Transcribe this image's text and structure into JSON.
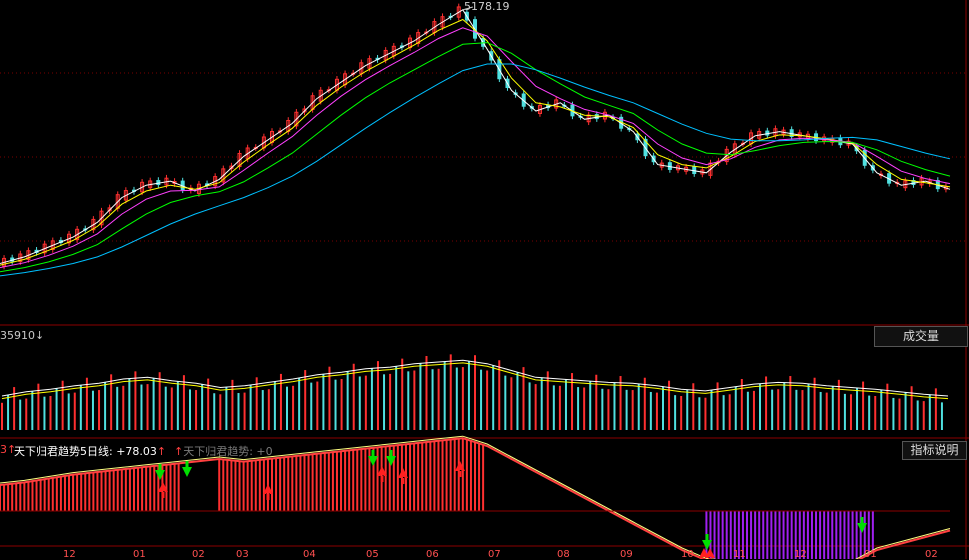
{
  "chart_data": [
    {
      "type": "line",
      "panel": "price",
      "title": "",
      "annotations": [
        {
          "label": "5178.19"
        }
      ],
      "series": [
        {
          "name": "",
          "color": "#ffffff",
          "values": [
            2100,
            2180,
            2300,
            2420,
            2600,
            2900,
            3050,
            3100,
            2980,
            3120,
            3400,
            3600,
            3800,
            4100,
            4300,
            4500,
            4650,
            4800,
            5000,
            5178,
            4700,
            4200,
            3950,
            4050,
            3850,
            3900,
            3700,
            3300,
            3250,
            3200,
            3450,
            3650,
            3700,
            3650,
            3600,
            3550,
            3200,
            3050,
            3100,
            3000
          ]
        },
        {
          "name": "",
          "color": "#ffff00",
          "values": [
            2080,
            2150,
            2260,
            2380,
            2550,
            2820,
            2980,
            3050,
            3000,
            3080,
            3330,
            3540,
            3740,
            4020,
            4240,
            4430,
            4590,
            4750,
            4930,
            5060,
            4800,
            4350,
            4050,
            4000,
            3900,
            3880,
            3750,
            3420,
            3300,
            3260,
            3400,
            3580,
            3660,
            3650,
            3610,
            3560,
            3300,
            3120,
            3080,
            3030
          ]
        },
        {
          "name": "",
          "color": "#ff40ff",
          "values": [
            2050,
            2110,
            2200,
            2310,
            2460,
            2700,
            2880,
            2980,
            2990,
            3030,
            3230,
            3440,
            3640,
            3900,
            4130,
            4330,
            4500,
            4660,
            4830,
            4960,
            4860,
            4550,
            4250,
            4100,
            3970,
            3900,
            3800,
            3550,
            3380,
            3300,
            3370,
            3510,
            3600,
            3620,
            3600,
            3570,
            3400,
            3220,
            3130,
            3070
          ]
        },
        {
          "name": "",
          "color": "#00ff00",
          "values": [
            2000,
            2050,
            2120,
            2210,
            2330,
            2520,
            2700,
            2840,
            2920,
            2970,
            3090,
            3260,
            3440,
            3670,
            3900,
            4110,
            4290,
            4450,
            4610,
            4760,
            4780,
            4650,
            4450,
            4280,
            4120,
            4020,
            3920,
            3720,
            3550,
            3440,
            3420,
            3470,
            3530,
            3570,
            3580,
            3570,
            3480,
            3340,
            3240,
            3160
          ]
        },
        {
          "name": "",
          "color": "#00c0ff",
          "values": [
            1950,
            1990,
            2040,
            2100,
            2180,
            2300,
            2440,
            2580,
            2700,
            2800,
            2900,
            3020,
            3160,
            3340,
            3540,
            3740,
            3930,
            4110,
            4280,
            4440,
            4520,
            4520,
            4450,
            4350,
            4240,
            4140,
            4050,
            3920,
            3790,
            3680,
            3610,
            3590,
            3590,
            3600,
            3620,
            3630,
            3600,
            3520,
            3440,
            3370
          ]
        }
      ]
    },
    {
      "type": "bar",
      "panel": "volume",
      "title": "",
      "label": "35910↓",
      "button": "成交量",
      "values": [
        40,
        45,
        48,
        52,
        55,
        60,
        62,
        58,
        55,
        50,
        52,
        56,
        60,
        65,
        68,
        72,
        74,
        78,
        80,
        82,
        78,
        70,
        62,
        60,
        58,
        56,
        55,
        52,
        48,
        46,
        50,
        54,
        56,
        55,
        52,
        50,
        48,
        45,
        42,
        40
      ]
    },
    {
      "type": "bar",
      "panel": "indicator",
      "title": "",
      "left_marker": "3↑",
      "legend": [
        {
          "label": "天下归君趋势5日线: +78.03",
          "arrow": "↑"
        },
        {
          "label": "天下归君趋势: +0",
          "arrow": "↑"
        }
      ],
      "button": "指标说明",
      "values": [
        20,
        22,
        25,
        28,
        30,
        32,
        34,
        36,
        38,
        40,
        38,
        40,
        42,
        44,
        46,
        48,
        50,
        52,
        54,
        56,
        50,
        40,
        30,
        20,
        10,
        0,
        -10,
        -20,
        -30,
        -38,
        -40,
        -40,
        -40,
        -40,
        -40,
        -40,
        -30,
        -25,
        -20,
        -15
      ]
    }
  ],
  "months": [
    "12",
    "01",
    "02",
    "03",
    "04",
    "05",
    "06",
    "07",
    "08",
    "09",
    "10",
    "11",
    "12",
    "01",
    "02"
  ],
  "colors": {
    "up": "#ff3030",
    "down": "#50e0e0",
    "purple": "#a020f0",
    "green_arrow": "#00e000",
    "red_arrow": "#ff2020",
    "grid": "#7a0000"
  }
}
